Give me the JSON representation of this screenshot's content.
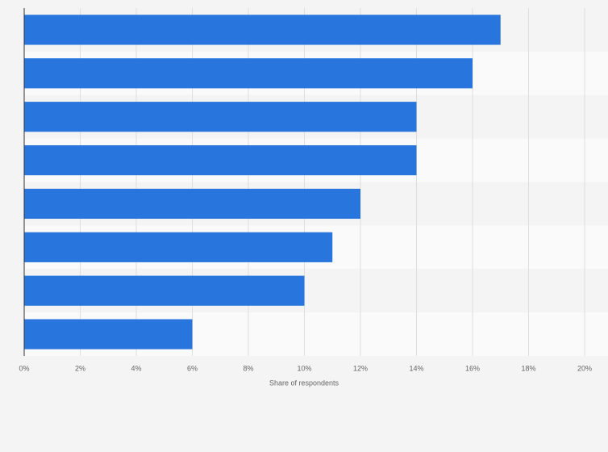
{
  "chart_data": {
    "type": "bar",
    "orientation": "horizontal",
    "x_label": "Share of respondents",
    "categories": [
      null,
      null,
      null,
      null,
      null,
      null,
      null,
      null
    ],
    "values": [
      17,
      16,
      14,
      14,
      12,
      11,
      10,
      6
    ],
    "color": "#2876dd",
    "xlim": [
      0,
      20
    ],
    "xticks": [
      {
        "value": 0,
        "label": "0%"
      },
      {
        "value": 2,
        "label": "2%"
      },
      {
        "value": 4,
        "label": "4%"
      },
      {
        "value": 6,
        "label": "6%"
      },
      {
        "value": 8,
        "label": "8%"
      },
      {
        "value": 10,
        "label": "10%"
      },
      {
        "value": 12,
        "label": "12%"
      },
      {
        "value": 14,
        "label": "14%"
      },
      {
        "value": 16,
        "label": "16%"
      },
      {
        "value": 18,
        "label": "18%"
      },
      {
        "value": 20,
        "label": "20%"
      }
    ],
    "grid": true
  }
}
